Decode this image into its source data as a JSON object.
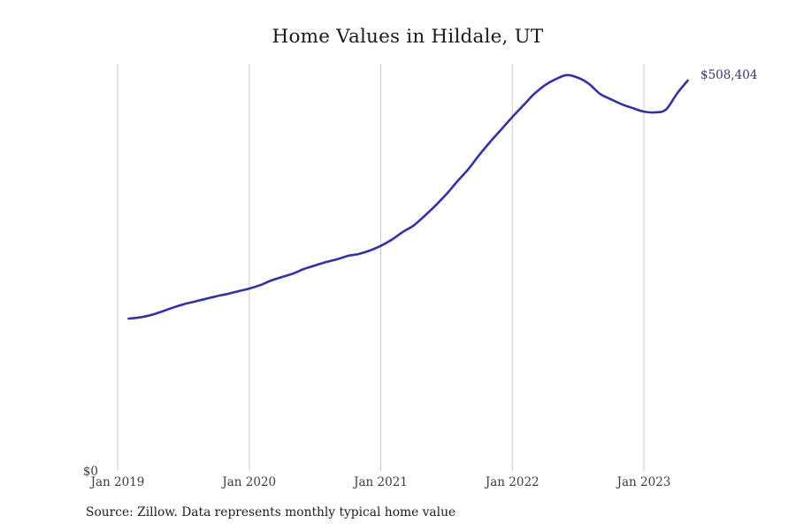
{
  "page": {
    "title": "Home Values in Hildale, UT",
    "source_note": "Source: Zillow. Data represents monthly typical home value"
  },
  "chart_data": {
    "type": "line",
    "title": "Home Values in Hildale, UT",
    "series_name": "Monthly typical home value",
    "unit": "USD",
    "y_zero_label": "$0",
    "end_label": "$508,404",
    "latest_value": 508404,
    "ylim": [
      0,
      560000
    ],
    "grid": "vertical-year-gridlines",
    "legend": "none",
    "line_color": "#3232a0",
    "gridline_color": "#cbcbcb",
    "start_month_offset": 1,
    "x_ticks": [
      {
        "label": "Jan 2019",
        "month_offset": 0
      },
      {
        "label": "Jan 2020",
        "month_offset": 12
      },
      {
        "label": "Jan 2021",
        "month_offset": 24
      },
      {
        "label": "Jan 2022",
        "month_offset": 36
      },
      {
        "label": "Jan 2023",
        "month_offset": 48
      }
    ],
    "points": [
      {
        "date": "Feb 2019",
        "value": 199000
      },
      {
        "date": "Mar 2019",
        "value": 200500
      },
      {
        "date": "Apr 2019",
        "value": 203500
      },
      {
        "date": "May 2019",
        "value": 208000
      },
      {
        "date": "Jun 2019",
        "value": 213000
      },
      {
        "date": "Jul 2019",
        "value": 217500
      },
      {
        "date": "Aug 2019",
        "value": 221000
      },
      {
        "date": "Sep 2019",
        "value": 224500
      },
      {
        "date": "Oct 2019",
        "value": 228000
      },
      {
        "date": "Nov 2019",
        "value": 231000
      },
      {
        "date": "Dec 2019",
        "value": 234500
      },
      {
        "date": "Jan 2020",
        "value": 238000
      },
      {
        "date": "Feb 2020",
        "value": 242500
      },
      {
        "date": "Mar 2020",
        "value": 248500
      },
      {
        "date": "Apr 2020",
        "value": 253000
      },
      {
        "date": "May 2020",
        "value": 257500
      },
      {
        "date": "Jun 2020",
        "value": 263500
      },
      {
        "date": "Jul 2020",
        "value": 268000
      },
      {
        "date": "Aug 2020",
        "value": 272500
      },
      {
        "date": "Sep 2020",
        "value": 276000
      },
      {
        "date": "Oct 2020",
        "value": 280500
      },
      {
        "date": "Nov 2020",
        "value": 283000
      },
      {
        "date": "Dec 2020",
        "value": 287500
      },
      {
        "date": "Jan 2021",
        "value": 293500
      },
      {
        "date": "Feb 2021",
        "value": 301500
      },
      {
        "date": "Mar 2021",
        "value": 311500
      },
      {
        "date": "Apr 2021",
        "value": 320000
      },
      {
        "date": "May 2021",
        "value": 332500
      },
      {
        "date": "Jun 2021",
        "value": 346000
      },
      {
        "date": "Jul 2021",
        "value": 361000
      },
      {
        "date": "Aug 2021",
        "value": 377500
      },
      {
        "date": "Sep 2021",
        "value": 393500
      },
      {
        "date": "Oct 2021",
        "value": 412000
      },
      {
        "date": "Nov 2021",
        "value": 429000
      },
      {
        "date": "Dec 2021",
        "value": 445000
      },
      {
        "date": "Jan 2022",
        "value": 461000
      },
      {
        "date": "Feb 2022",
        "value": 476000
      },
      {
        "date": "Mar 2022",
        "value": 491000
      },
      {
        "date": "Apr 2022",
        "value": 502500
      },
      {
        "date": "May 2022",
        "value": 510500
      },
      {
        "date": "Jun 2022",
        "value": 515500
      },
      {
        "date": "Jul 2022",
        "value": 512000
      },
      {
        "date": "Aug 2022",
        "value": 504000
      },
      {
        "date": "Sep 2022",
        "value": 491000
      },
      {
        "date": "Oct 2022",
        "value": 484000
      },
      {
        "date": "Nov 2022",
        "value": 477500
      },
      {
        "date": "Dec 2022",
        "value": 472500
      },
      {
        "date": "Jan 2023",
        "value": 468000
      },
      {
        "date": "Feb 2023",
        "value": 467000
      },
      {
        "date": "Mar 2023",
        "value": 470500
      },
      {
        "date": "Apr 2023",
        "value": 491000
      },
      {
        "date": "May 2023",
        "value": 508404
      }
    ]
  }
}
